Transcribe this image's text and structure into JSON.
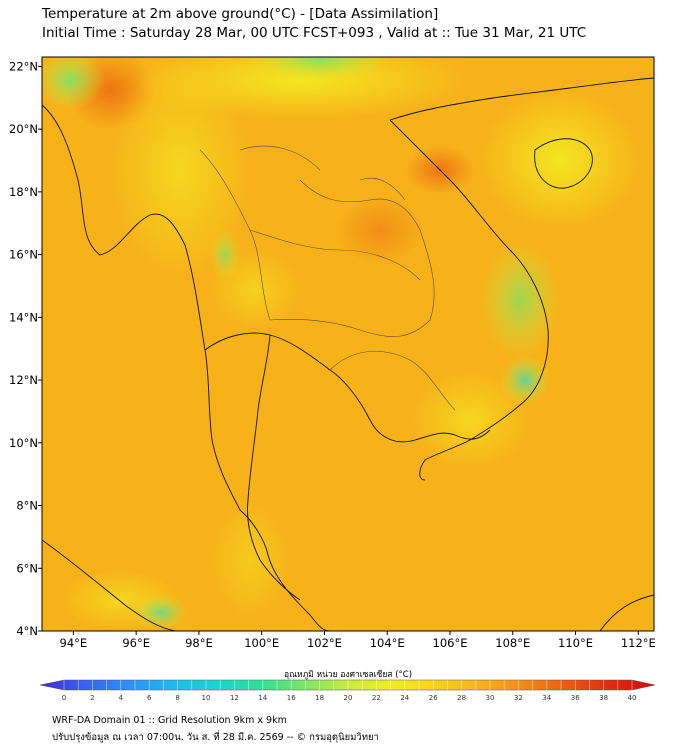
{
  "title": {
    "line1": "Temperature at 2m above ground(°C) - [Data Assimilation]",
    "line2": "Initial Time : Saturday 28 Mar, 00 UTC FCST+093 , Valid at :: Tue 31 Mar, 21 UTC"
  },
  "map": {
    "lon_range": [
      93,
      112.5
    ],
    "lat_range": [
      4,
      22.3
    ],
    "lon_ticks": [
      "94°E",
      "96°E",
      "98°E",
      "100°E",
      "102°E",
      "104°E",
      "106°E",
      "108°E",
      "110°E",
      "112°E"
    ],
    "lat_ticks": [
      "22°N",
      "20°N",
      "18°N",
      "16°N",
      "14°N",
      "12°N",
      "10°N",
      "8°N",
      "6°N",
      "4°N"
    ],
    "background_color": "#f7b21a"
  },
  "colorbar": {
    "label": "อุณหภูมิ หน่วย องศาเซลเซียส (°C)",
    "min": 0,
    "max": 40,
    "tick_labels": [
      "0",
      "2",
      "4",
      "6",
      "8",
      "10",
      "12",
      "14",
      "16",
      "18",
      "20",
      "22",
      "24",
      "26",
      "28",
      "30",
      "32",
      "34",
      "36",
      "38",
      "40"
    ],
    "colors": [
      "#3b2cd6",
      "#3a5ff0",
      "#2f8ff5",
      "#1fb9ee",
      "#17d6d0",
      "#2ee09a",
      "#7be46a",
      "#c9ec3c",
      "#f3ec22",
      "#f8d21a",
      "#f7b21a",
      "#f38b18",
      "#ec5a12",
      "#e02a10",
      "#d40b0b"
    ]
  },
  "footer": {
    "line1": "WRF-DA Domain 01 :: Grid Resolution 9km x 9km",
    "line2": "ปรับปรุงข้อมูล ณ เวลา 07:00น. วัน ส. ที่ 28 มี.ค. 2569 -- © กรมอุตุนิยมวิทยา"
  }
}
